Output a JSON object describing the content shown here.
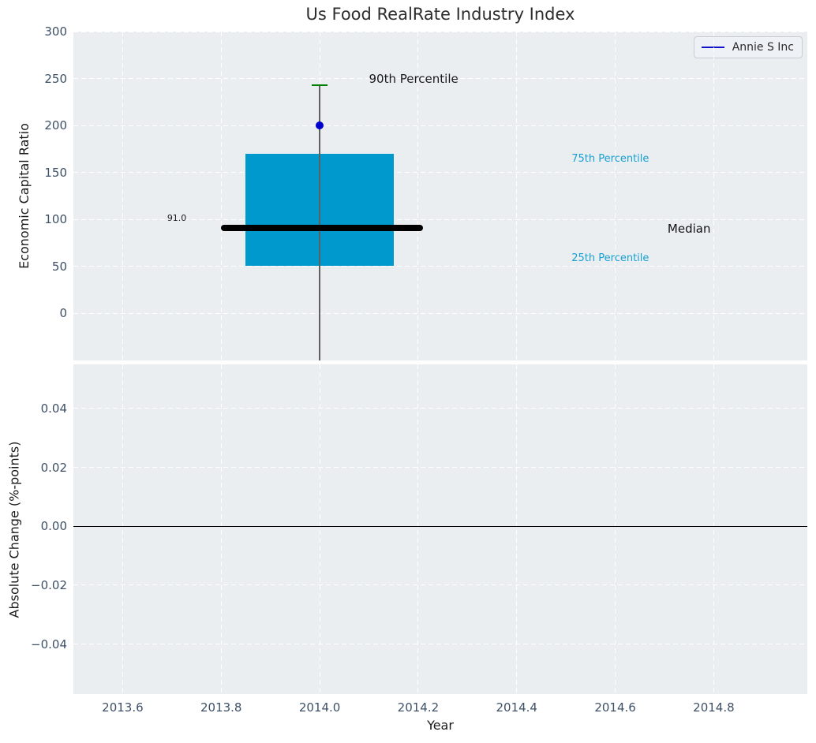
{
  "figure_title": "Us Food RealRate Industry Index",
  "colors": {
    "axes_bg": "#eaeef0",
    "grid": "#ffffff",
    "box_fill": "#0099cd",
    "median_line": "#000000",
    "whisker": "#606060",
    "cap": "#008000",
    "marker": "#0000cc",
    "legend_line": "#1212cc",
    "tick_label": "#3e5066",
    "percentile_label": "#18a0d4",
    "zero_line": "#000000"
  },
  "chart_data": [
    {
      "type": "boxplot",
      "title": "Us Food RealRate Industry Index",
      "ylabel": "Economic Capital Ratio",
      "xlim": [
        2013.5,
        2014.99
      ],
      "ylim": [
        -50,
        300
      ],
      "grid": true,
      "yticks": [
        {
          "v": 0,
          "label": "0"
        },
        {
          "v": 50,
          "label": "50"
        },
        {
          "v": 100,
          "label": "100"
        },
        {
          "v": 150,
          "label": "150"
        },
        {
          "v": 200,
          "label": "200"
        },
        {
          "v": 250,
          "label": "250"
        },
        {
          "v": 300,
          "label": "300"
        }
      ],
      "xticks": [
        2013.6,
        2013.8,
        2014.0,
        2014.2,
        2014.4,
        2014.6,
        2014.8
      ],
      "box": {
        "x": 2014.0,
        "half_width": 0.15,
        "q1": 51,
        "median": 91,
        "q3": 170,
        "p90": 243,
        "whisker_low_clipped_at_axis_bottom": true,
        "median_line_x0": 2013.8,
        "median_line_x1": 2014.21,
        "cap_half_width": 0.016,
        "median_value_label": "91.0"
      },
      "series": [
        {
          "name": "Annie S Inc",
          "type": "point",
          "x": 2014.0,
          "y": 200
        }
      ],
      "legend": {
        "position": "upper right",
        "label": "Annie S Inc"
      },
      "annotations": [
        {
          "text": "90th Percentile",
          "x": 2014.1,
          "y": 250,
          "align": "left",
          "color": "#1a1a1a",
          "size": 15
        },
        {
          "text": "75th Percentile",
          "x": 2014.59,
          "y": 164,
          "align": "center",
          "color": "#18a0d4",
          "size": 13
        },
        {
          "text": "Median",
          "x": 2014.75,
          "y": 90,
          "align": "center",
          "color": "#111111",
          "size": 15
        },
        {
          "text": "25th Percentile",
          "x": 2014.59,
          "y": 58,
          "align": "center",
          "color": "#18a0d4",
          "size": 13
        },
        {
          "text": "91.0",
          "x": 2013.71,
          "y": 101,
          "align": "center",
          "color": "#1a1a1a",
          "size": 11
        }
      ]
    },
    {
      "type": "line",
      "ylabel": "Absolute Change (%-points)",
      "xlabel": "Year",
      "xlim": [
        2013.5,
        2014.99
      ],
      "ylim": [
        -0.057,
        0.055
      ],
      "grid": true,
      "yticks": [
        {
          "v": 0.04,
          "label": "0.04"
        },
        {
          "v": 0.02,
          "label": "0.02"
        },
        {
          "v": 0.0,
          "label": "0.00"
        },
        {
          "v": -0.02,
          "label": "−0.02"
        },
        {
          "v": -0.04,
          "label": "−0.04"
        }
      ],
      "xticks": [
        {
          "v": 2013.6,
          "label": "2013.6"
        },
        {
          "v": 2013.8,
          "label": "2013.8"
        },
        {
          "v": 2014.0,
          "label": "2014.0"
        },
        {
          "v": 2014.2,
          "label": "2014.2"
        },
        {
          "v": 2014.4,
          "label": "2014.4"
        },
        {
          "v": 2014.6,
          "label": "2014.6"
        },
        {
          "v": 2014.8,
          "label": "2014.8"
        }
      ],
      "zero_line": 0.0,
      "series": []
    }
  ]
}
